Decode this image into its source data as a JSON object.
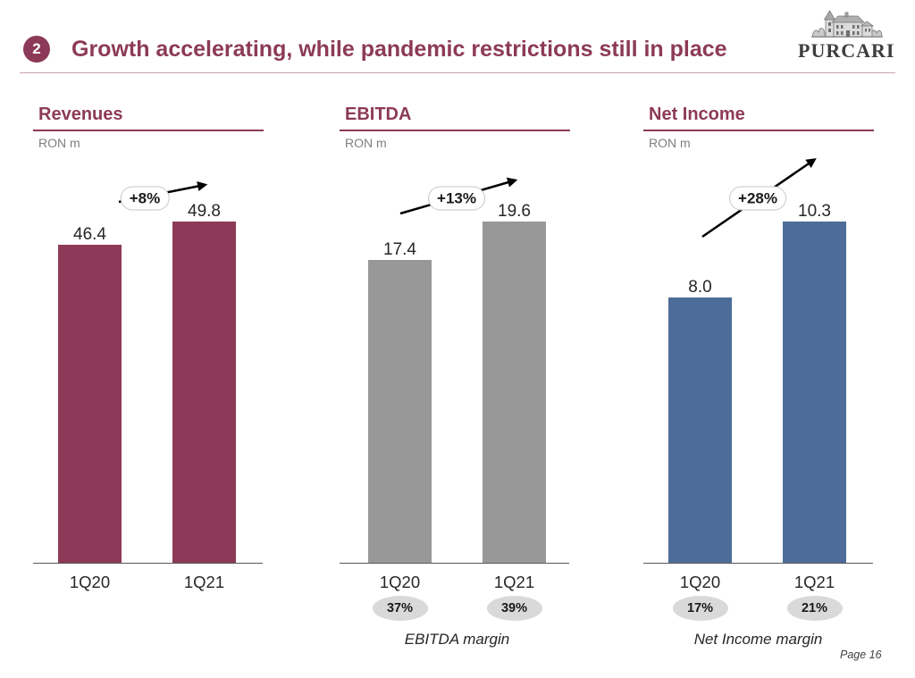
{
  "slide": {
    "section_number": "2",
    "title": "Growth accelerating, while pandemic restrictions still in place",
    "logo_text": "PURCARI",
    "page_label": "Page 16"
  },
  "colors": {
    "brand": "#8C3A57",
    "margin_badge": "#D9D9D9"
  },
  "chart_data": [
    {
      "type": "bar",
      "title": "Revenues",
      "unit": "RON m",
      "categories": [
        "1Q20",
        "1Q21"
      ],
      "values": [
        46.4,
        49.8
      ],
      "data_labels": [
        "46.4",
        "49.8"
      ],
      "growth": "+8%",
      "color": "#8C3A57",
      "grid": false
    },
    {
      "type": "bar",
      "title": "EBITDA",
      "unit": "RON m",
      "categories": [
        "1Q20",
        "1Q21"
      ],
      "values": [
        17.4,
        19.6
      ],
      "data_labels": [
        "17.4",
        "19.6"
      ],
      "growth": "+13%",
      "color": "#989898",
      "margin": {
        "label": "EBITDA margin",
        "values": [
          "37%",
          "39%"
        ]
      },
      "grid": false
    },
    {
      "type": "bar",
      "title": "Net Income",
      "unit": "RON m",
      "categories": [
        "1Q20",
        "1Q21"
      ],
      "values": [
        8.0,
        10.3
      ],
      "data_labels": [
        "8.0",
        "10.3"
      ],
      "growth": "+28%",
      "color": "#4E6C98",
      "margin": {
        "label": "Net Income margin",
        "values": [
          "17%",
          "21%"
        ]
      },
      "grid": false
    }
  ]
}
